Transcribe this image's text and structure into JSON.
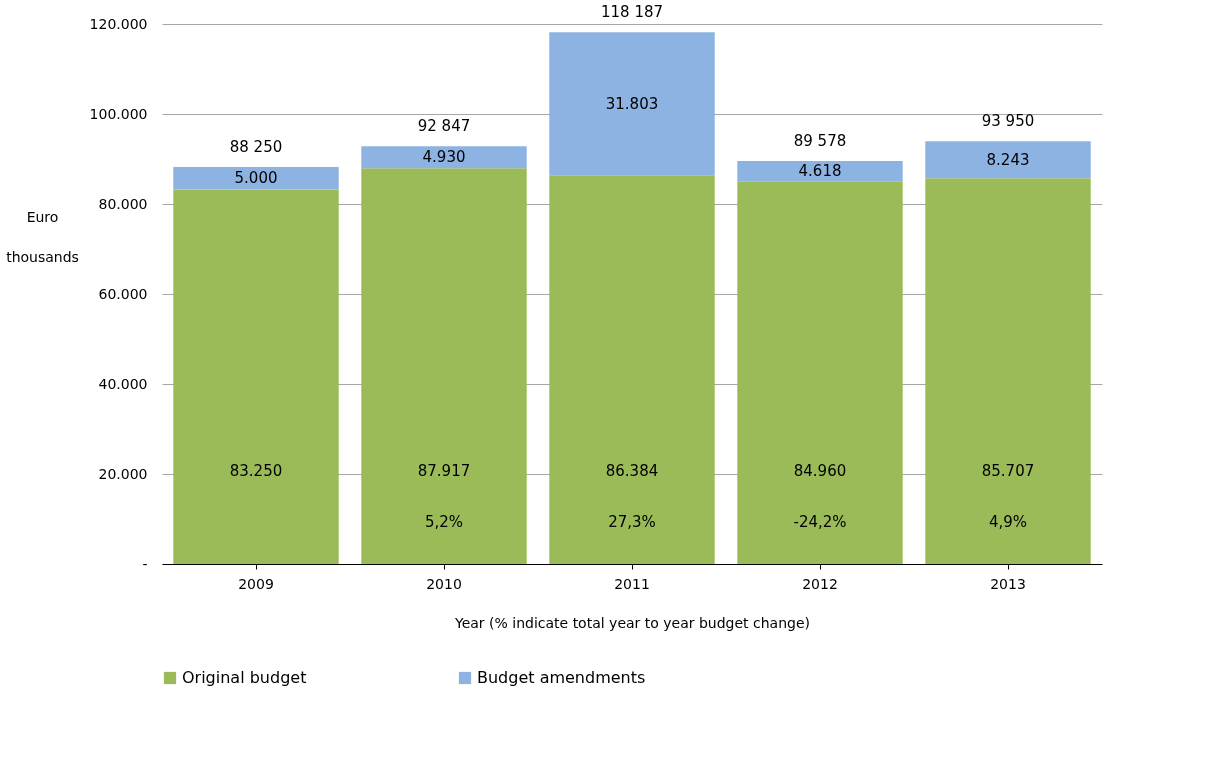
{
  "chart_data": {
    "type": "bar",
    "stacked": true,
    "categories": [
      "2009",
      "2010",
      "2011",
      "2012",
      "2013"
    ],
    "series": [
      {
        "name": "Original budget",
        "color": "#9bbb59",
        "values": [
          83250,
          87917,
          86384,
          84960,
          85707
        ],
        "value_labels": [
          "83.250",
          "87.917",
          "86.384",
          "84.960",
          "85.707"
        ]
      },
      {
        "name": "Budget amendments",
        "color": "#8db3e2",
        "values": [
          5000,
          4930,
          31803,
          4618,
          8243
        ],
        "value_labels": [
          "5.000",
          "4.930",
          "31.803",
          "4.618",
          "8.243"
        ]
      }
    ],
    "totals": [
      "88 250",
      "92 847",
      "118 187",
      "89 578",
      "93 950"
    ],
    "annotations": [
      "5,2%",
      "27,3%",
      "-24,2%",
      "4,9%"
    ],
    "ylabel": "Euro thousands",
    "xlabel": "Year (% indicate total  year to year budget change)",
    "ylim": [
      0,
      120000
    ],
    "yticks": [
      {
        "value": 0,
        "label": "-"
      },
      {
        "value": 20000,
        "label": "20.000"
      },
      {
        "value": 40000,
        "label": "40.000"
      },
      {
        "value": 60000,
        "label": "60.000"
      },
      {
        "value": 80000,
        "label": "80.000"
      },
      {
        "value": 100000,
        "label": "100.000"
      },
      {
        "value": 120000,
        "label": "120.000"
      }
    ],
    "grid": "y",
    "legend": "bottom"
  }
}
